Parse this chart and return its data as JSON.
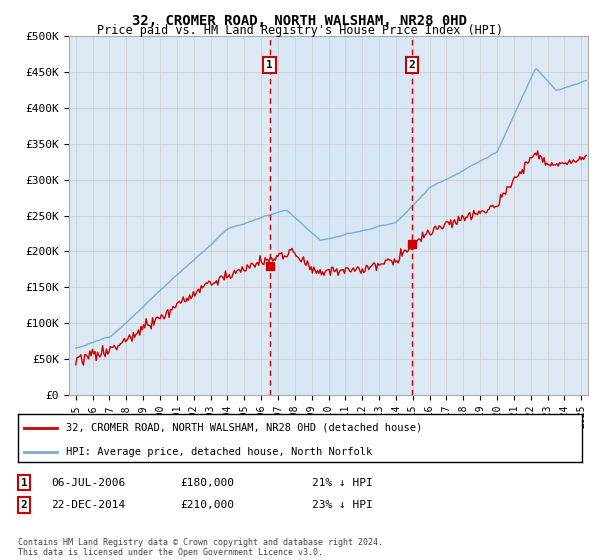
{
  "title": "32, CROMER ROAD, NORTH WALSHAM, NR28 0HD",
  "subtitle": "Price paid vs. HM Land Registry's House Price Index (HPI)",
  "legend_line1": "32, CROMER ROAD, NORTH WALSHAM, NR28 0HD (detached house)",
  "legend_line2": "HPI: Average price, detached house, North Norfolk",
  "annotation1_label": "1",
  "annotation1_date": "06-JUL-2006",
  "annotation1_price": "£180,000",
  "annotation1_hpi": "21% ↓ HPI",
  "annotation1_year": 2006.5,
  "annotation1_value": 180000,
  "annotation2_label": "2",
  "annotation2_date": "22-DEC-2014",
  "annotation2_price": "£210,000",
  "annotation2_hpi": "23% ↓ HPI",
  "annotation2_year": 2014.97,
  "annotation2_value": 210000,
  "footer": "Contains HM Land Registry data © Crown copyright and database right 2024.\nThis data is licensed under the Open Government Licence v3.0.",
  "hpi_color": "#7aadd4",
  "price_color": "#cc0000",
  "dashed_line_color": "#cc0000",
  "shade_color": "#d0e4f5",
  "background_color": "#dce9f5",
  "grid_color": "#cccccc",
  "ylim": [
    0,
    500000
  ],
  "yticks": [
    0,
    50000,
    100000,
    150000,
    200000,
    250000,
    300000,
    350000,
    400000,
    450000,
    500000
  ],
  "xlim_start": 1994.6,
  "xlim_end": 2025.4
}
